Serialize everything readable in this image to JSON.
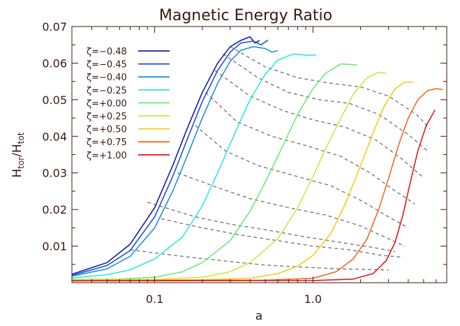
{
  "chart_data": {
    "type": "line",
    "title": "Magnetic Energy Ratio",
    "xlabel": "a",
    "ylabel_main": "H",
    "ylabel_sub1": "tor",
    "ylabel_sep": "/",
    "ylabel_sub2": "tot",
    "xscale": "log",
    "xlim": [
      0.03,
      7.0
    ],
    "ylim": [
      0.0,
      0.07
    ],
    "xticks": [
      {
        "value": 0.1,
        "label": "0.1"
      },
      {
        "value": 1.0,
        "label": "1.0"
      }
    ],
    "yticks": [
      {
        "value": 0.01,
        "label": "0.01"
      },
      {
        "value": 0.02,
        "label": "0.02"
      },
      {
        "value": 0.03,
        "label": "0.03"
      },
      {
        "value": 0.04,
        "label": "0.04"
      },
      {
        "value": 0.05,
        "label": "0.05"
      },
      {
        "value": 0.06,
        "label": "0.06"
      },
      {
        "value": 0.07,
        "label": "0.07"
      }
    ],
    "grid": false,
    "legend_position": "top-left",
    "series": [
      {
        "name": "ζ=−0.48",
        "color": "#1a1aa8",
        "peak_a": 0.4,
        "peak_h": 0.0672,
        "aend": 0.46,
        "asym": [
          [
            0.03,
            0.0023
          ],
          [
            0.05,
            0.0055
          ],
          [
            0.07,
            0.0105
          ],
          [
            0.1,
            0.0205
          ],
          [
            0.13,
            0.032
          ],
          [
            0.16,
            0.042
          ],
          [
            0.2,
            0.052
          ],
          [
            0.25,
            0.06
          ],
          [
            0.3,
            0.0645
          ],
          [
            0.35,
            0.0662
          ],
          [
            0.4,
            0.0672
          ],
          [
            0.43,
            0.0655
          ],
          [
            0.46,
            0.0662
          ]
        ]
      },
      {
        "name": "ζ=−0.45",
        "color": "#1e4fd0",
        "aend": 0.52,
        "asym": [
          [
            0.03,
            0.002
          ],
          [
            0.05,
            0.0047
          ],
          [
            0.07,
            0.0088
          ],
          [
            0.1,
            0.018
          ],
          [
            0.13,
            0.029
          ],
          [
            0.16,
            0.039
          ],
          [
            0.2,
            0.0495
          ],
          [
            0.25,
            0.058
          ],
          [
            0.3,
            0.063
          ],
          [
            0.35,
            0.0655
          ],
          [
            0.42,
            0.066
          ],
          [
            0.47,
            0.065
          ],
          [
            0.52,
            0.0663
          ]
        ]
      },
      {
        "name": "ζ=−0.40",
        "color": "#1e90e6",
        "aend": 0.6,
        "asym": [
          [
            0.03,
            0.0018
          ],
          [
            0.05,
            0.0038
          ],
          [
            0.07,
            0.0072
          ],
          [
            0.1,
            0.015
          ],
          [
            0.13,
            0.025
          ],
          [
            0.16,
            0.0345
          ],
          [
            0.2,
            0.045
          ],
          [
            0.25,
            0.0545
          ],
          [
            0.3,
            0.0605
          ],
          [
            0.35,
            0.0635
          ],
          [
            0.42,
            0.0645
          ],
          [
            0.5,
            0.064
          ],
          [
            0.55,
            0.063
          ],
          [
            0.6,
            0.0634
          ]
        ]
      },
      {
        "name": "ζ=−0.25",
        "color": "#2ee6e6",
        "aend": 1.05,
        "asym": [
          [
            0.03,
            0.0013
          ],
          [
            0.05,
            0.0022
          ],
          [
            0.07,
            0.0035
          ],
          [
            0.1,
            0.0065
          ],
          [
            0.15,
            0.0125
          ],
          [
            0.2,
            0.021
          ],
          [
            0.25,
            0.03
          ],
          [
            0.3,
            0.038
          ],
          [
            0.4,
            0.05
          ],
          [
            0.5,
            0.057
          ],
          [
            0.6,
            0.0608
          ],
          [
            0.75,
            0.0625
          ],
          [
            0.9,
            0.0622
          ],
          [
            1.05,
            0.0622
          ]
        ]
      },
      {
        "name": "ζ=+0.00",
        "color": "#6ee87c",
        "aend": 1.9,
        "asym": [
          [
            0.03,
            0.0009
          ],
          [
            0.06,
            0.001
          ],
          [
            0.1,
            0.0015
          ],
          [
            0.15,
            0.003
          ],
          [
            0.2,
            0.0055
          ],
          [
            0.3,
            0.0115
          ],
          [
            0.4,
            0.0195
          ],
          [
            0.5,
            0.0275
          ],
          [
            0.6,
            0.0345
          ],
          [
            0.8,
            0.046
          ],
          [
            1.0,
            0.053
          ],
          [
            1.2,
            0.0572
          ],
          [
            1.5,
            0.0598
          ],
          [
            1.9,
            0.0595
          ]
        ]
      },
      {
        "name": "ζ=+0.25",
        "color": "#c8ea40",
        "aend": 2.9,
        "asym": [
          [
            0.03,
            0.0008
          ],
          [
            0.1,
            0.0009
          ],
          [
            0.2,
            0.0015
          ],
          [
            0.3,
            0.003
          ],
          [
            0.4,
            0.0055
          ],
          [
            0.6,
            0.012
          ],
          [
            0.8,
            0.0205
          ],
          [
            1.0,
            0.029
          ],
          [
            1.2,
            0.0365
          ],
          [
            1.5,
            0.045
          ],
          [
            1.8,
            0.0515
          ],
          [
            2.2,
            0.056
          ],
          [
            2.6,
            0.0575
          ],
          [
            2.9,
            0.0572
          ]
        ]
      },
      {
        "name": "ζ=+0.50",
        "color": "#f4cc1a",
        "aend": 4.3,
        "asym": [
          [
            0.03,
            0.0007
          ],
          [
            0.2,
            0.0008
          ],
          [
            0.4,
            0.0012
          ],
          [
            0.6,
            0.0025
          ],
          [
            0.8,
            0.0045
          ],
          [
            1.0,
            0.0075
          ],
          [
            1.3,
            0.0135
          ],
          [
            1.6,
            0.0215
          ],
          [
            2.0,
            0.032
          ],
          [
            2.4,
            0.041
          ],
          [
            2.8,
            0.048
          ],
          [
            3.3,
            0.053
          ],
          [
            3.8,
            0.0548
          ],
          [
            4.3,
            0.0548
          ]
        ]
      },
      {
        "name": "ζ=+0.75",
        "color": "#f26a1e",
        "aend": 6.6,
        "asym": [
          [
            0.03,
            0.0006
          ],
          [
            0.5,
            0.0007
          ],
          [
            1.0,
            0.0012
          ],
          [
            1.4,
            0.003
          ],
          [
            1.8,
            0.0065
          ],
          [
            2.2,
            0.012
          ],
          [
            2.6,
            0.02
          ],
          [
            3.0,
            0.0285
          ],
          [
            3.5,
            0.038
          ],
          [
            4.0,
            0.045
          ],
          [
            4.6,
            0.05
          ],
          [
            5.3,
            0.0525
          ],
          [
            6.0,
            0.053
          ],
          [
            6.6,
            0.0528
          ]
        ]
      },
      {
        "name": "ζ=+1.00",
        "color": "#e01a1a",
        "aend": 5.9,
        "asym": [
          [
            0.03,
            0.0005
          ],
          [
            1.0,
            0.0006
          ],
          [
            1.8,
            0.001
          ],
          [
            2.4,
            0.0025
          ],
          [
            2.9,
            0.006
          ],
          [
            3.3,
            0.011
          ],
          [
            3.7,
            0.0185
          ],
          [
            4.1,
            0.027
          ],
          [
            4.6,
            0.036
          ],
          [
            5.2,
            0.043
          ],
          [
            5.9,
            0.0472
          ]
        ]
      }
    ],
    "dashed_contours": [
      [
        [
          0.3,
          0.0645
        ],
        [
          0.5,
          0.059
        ],
        [
          0.8,
          0.056
        ],
        [
          1.3,
          0.0545
        ],
        [
          2.0,
          0.0535
        ],
        [
          3.0,
          0.051
        ],
        [
          4.5,
          0.046
        ],
        [
          5.5,
          0.042
        ]
      ],
      [
        [
          0.27,
          0.0625
        ],
        [
          0.45,
          0.056
        ],
        [
          0.7,
          0.052
        ],
        [
          1.1,
          0.05
        ],
        [
          1.7,
          0.049
        ],
        [
          2.6,
          0.046
        ],
        [
          4.0,
          0.0405
        ],
        [
          5.3,
          0.036
        ]
      ],
      [
        [
          0.24,
          0.058
        ],
        [
          0.4,
          0.051
        ],
        [
          0.65,
          0.047
        ],
        [
          1.0,
          0.0445
        ],
        [
          1.6,
          0.0425
        ],
        [
          2.5,
          0.039
        ],
        [
          3.6,
          0.034
        ],
        [
          4.9,
          0.029
        ]
      ],
      [
        [
          0.21,
          0.052
        ],
        [
          0.33,
          0.044
        ],
        [
          0.55,
          0.04
        ],
        [
          0.9,
          0.0375
        ],
        [
          1.5,
          0.0345
        ],
        [
          2.3,
          0.03
        ],
        [
          3.2,
          0.0255
        ],
        [
          4.4,
          0.0215
        ]
      ],
      [
        [
          0.18,
          0.043
        ],
        [
          0.28,
          0.036
        ],
        [
          0.45,
          0.032
        ],
        [
          0.8,
          0.029
        ],
        [
          1.3,
          0.0265
        ],
        [
          2.0,
          0.0225
        ],
        [
          3.0,
          0.018
        ],
        [
          4.0,
          0.015
        ]
      ],
      [
        [
          0.14,
          0.03
        ],
        [
          0.25,
          0.026
        ],
        [
          0.4,
          0.023
        ],
        [
          0.7,
          0.0205
        ],
        [
          1.2,
          0.0185
        ],
        [
          2.0,
          0.0155
        ],
        [
          3.0,
          0.012
        ],
        [
          3.8,
          0.01
        ]
      ],
      [
        [
          0.11,
          0.0175
        ],
        [
          0.2,
          0.015
        ],
        [
          0.35,
          0.013
        ],
        [
          0.6,
          0.0115
        ],
        [
          1.0,
          0.01
        ],
        [
          1.7,
          0.009
        ],
        [
          2.7,
          0.0075
        ],
        [
          3.6,
          0.007
        ]
      ],
      [
        [
          0.07,
          0.009
        ],
        [
          0.15,
          0.0072
        ],
        [
          0.3,
          0.0058
        ],
        [
          0.5,
          0.0048
        ],
        [
          0.9,
          0.0042
        ],
        [
          1.5,
          0.0038
        ],
        [
          2.3,
          0.0036
        ],
        [
          3.0,
          0.0035
        ]
      ],
      [
        [
          0.09,
          0.022
        ],
        [
          0.18,
          0.018
        ],
        [
          0.3,
          0.016
        ],
        [
          0.5,
          0.0145
        ],
        [
          0.9,
          0.0125
        ],
        [
          1.5,
          0.011
        ],
        [
          2.5,
          0.0095
        ],
        [
          3.3,
          0.0085
        ]
      ]
    ]
  }
}
